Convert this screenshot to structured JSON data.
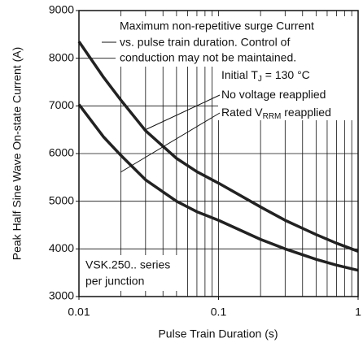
{
  "chart_data": {
    "type": "line",
    "xlabel": "Pulse Train Duration (s)",
    "ylabel": "Peak Half Sine Wave On-state Current (A)",
    "xscale": "log",
    "xlim": [
      0.01,
      1
    ],
    "xticks": [
      0.01,
      0.1,
      1
    ],
    "xminor_ticks": [
      0.02,
      0.03,
      0.04,
      0.05,
      0.06,
      0.07,
      0.08,
      0.09,
      0.2,
      0.3,
      0.4,
      0.5,
      0.6,
      0.7,
      0.8,
      0.9
    ],
    "ylim": [
      3000,
      9000
    ],
    "yticks": [
      3000,
      4000,
      5000,
      6000,
      7000,
      8000,
      9000
    ],
    "grid": true,
    "x": [
      0.01,
      0.015,
      0.02,
      0.03,
      0.05,
      0.07,
      0.1,
      0.2,
      0.3,
      0.5,
      0.7,
      1
    ],
    "series": [
      {
        "name": "No voltage reapplied",
        "color": "#222222",
        "values": [
          8350,
          7600,
          7120,
          6480,
          5900,
          5620,
          5380,
          4880,
          4600,
          4300,
          4120,
          3950
        ]
      },
      {
        "name": "Rated VRRM reapplied",
        "color": "#222222",
        "values": [
          7030,
          6350,
          5960,
          5450,
          5000,
          4780,
          4600,
          4200,
          4000,
          3780,
          3660,
          3550
        ]
      }
    ],
    "annotations": [
      "Maximum non-repetitive surge Current",
      "vs. pulse train duration. Control of",
      "conduction may not be maintained."
    ],
    "condition": {
      "prefix": "Initial T",
      "sub": "J",
      "suffix": " = 130 °C"
    },
    "legend_text": [
      {
        "prefix": "No voltage reapplied"
      },
      {
        "prefix": "Rated V",
        "sub": "RRM",
        "suffix": " reapplied"
      }
    ],
    "device": [
      "VSK.250.. series",
      "per junction"
    ]
  }
}
